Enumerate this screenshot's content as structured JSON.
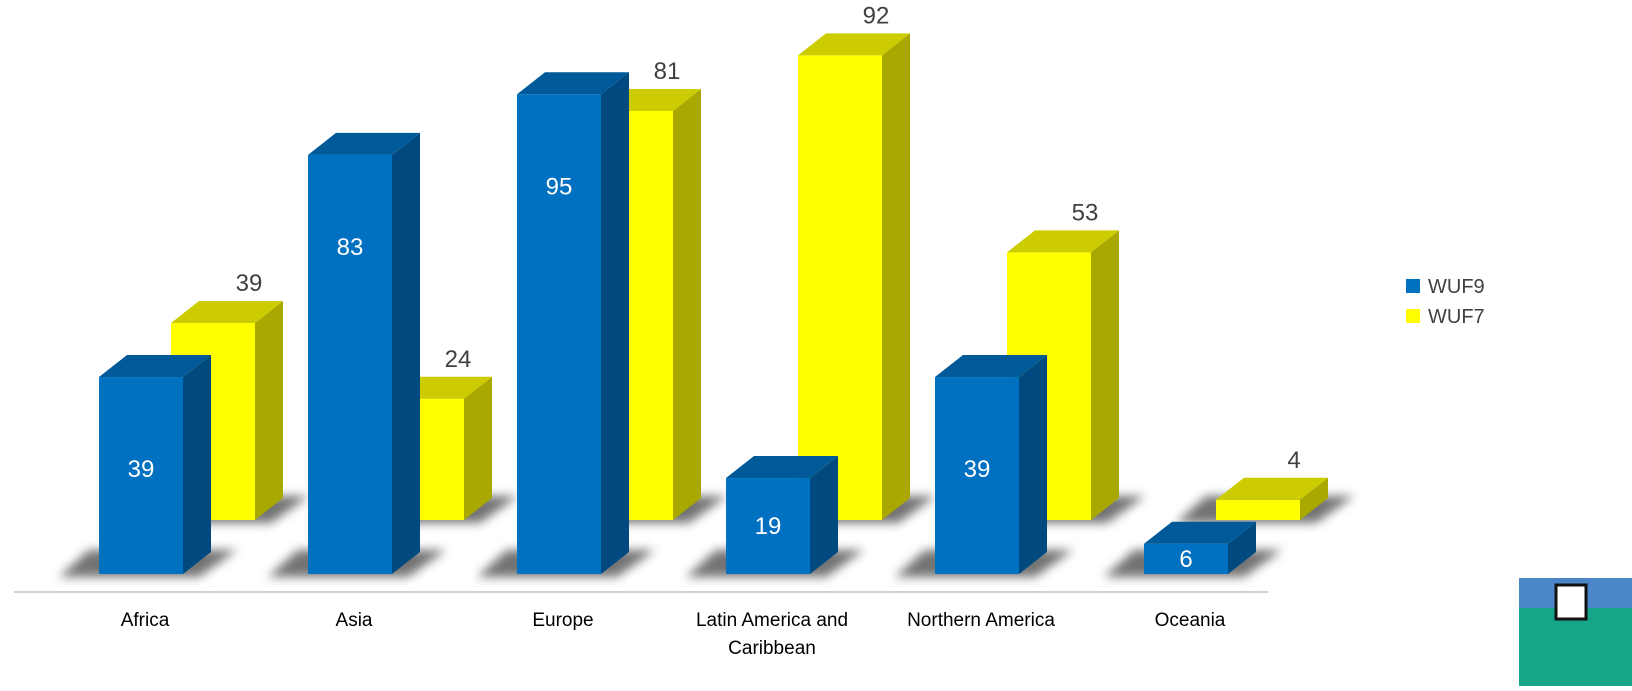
{
  "chart_data": {
    "type": "bar",
    "categories": [
      "Africa",
      "Asia",
      "Europe",
      "Latin America and Caribbean",
      "Northern America",
      "Oceania"
    ],
    "series": [
      {
        "name": "WUF9",
        "values": [
          39,
          83,
          95,
          19,
          39,
          6
        ],
        "color": "#0070C0"
      },
      {
        "name": "WUF7",
        "values": [
          39,
          24,
          81,
          92,
          53,
          4
        ],
        "color": "#FFFF00"
      }
    ],
    "title": "",
    "xlabel": "",
    "ylabel": "",
    "ylim": [
      0,
      100
    ],
    "grid": false,
    "legend": "right",
    "style": "3d-column"
  }
}
